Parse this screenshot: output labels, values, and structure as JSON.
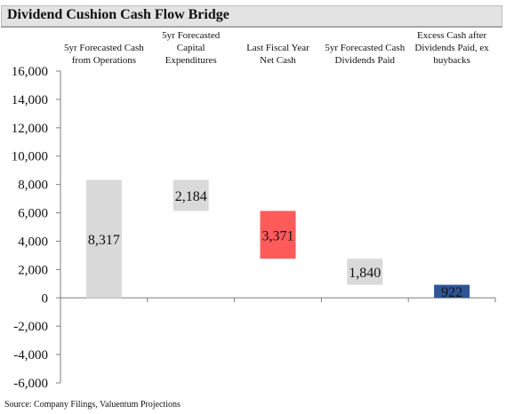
{
  "title": "Dividend Cushion Cash Flow Bridge",
  "source": "Source: Company Filings, Valuentum Projections",
  "chart_data": {
    "type": "bar",
    "subtype": "waterfall",
    "categories": [
      [
        "5yr Forecasted Cash",
        "from Operations"
      ],
      [
        "5yr Forecasted",
        "Capital",
        "Expenditures"
      ],
      [
        "Last Fiscal Year",
        "Net Cash"
      ],
      [
        "5yr Forecasted Cash",
        "Dividends Paid"
      ],
      [
        "Excess Cash after",
        "Dividends Paid, ex",
        "buybacks"
      ]
    ],
    "bars": [
      {
        "label": "8,317",
        "base": 0,
        "top": 8317,
        "color": "#d9d9d9"
      },
      {
        "label": "2,184",
        "base": 6133,
        "top": 8317,
        "color": "#d9d9d9"
      },
      {
        "label": "3,371",
        "base": 2762,
        "top": 6133,
        "color": "#ff5b5b"
      },
      {
        "label": "1,840",
        "base": 922,
        "top": 2762,
        "color": "#d9d9d9"
      },
      {
        "label": "922",
        "base": 0,
        "top": 922,
        "color": "#2f5597"
      }
    ],
    "yticks": [
      "16,000",
      "14,000",
      "12,000",
      "10,000",
      "8,000",
      "6,000",
      "4,000",
      "2,000",
      "0",
      "-2,000",
      "-4,000",
      "-6,000"
    ],
    "ylim": [
      -6000,
      16000
    ],
    "grid": false,
    "legend": "none"
  }
}
